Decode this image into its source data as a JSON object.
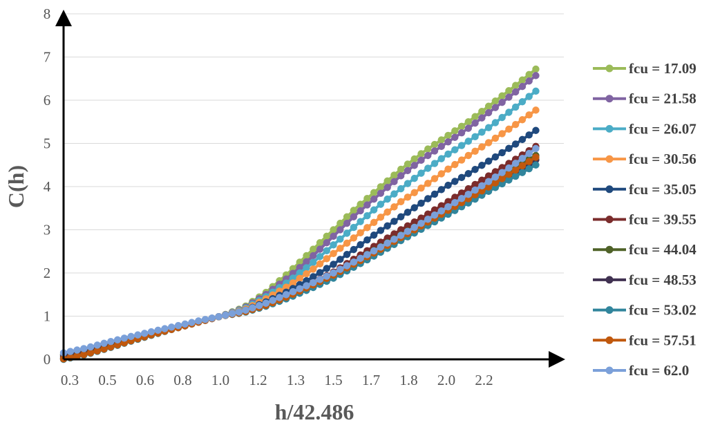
{
  "chart_data": {
    "type": "line",
    "title": "",
    "xlabel": "h/42.486",
    "ylabel": "C(h)",
    "xlim": [
      0.3,
      2.5
    ],
    "ylim": [
      0,
      8
    ],
    "x_tick_labels": [
      "0.3",
      "0.5",
      "0.6",
      "0.8",
      "1.0",
      "1.2",
      "1.3",
      "1.5",
      "1.7",
      "1.8",
      "2.0",
      "2.2"
    ],
    "y_ticks": [
      0,
      1,
      2,
      3,
      4,
      5,
      6,
      7,
      8
    ],
    "grid": "horizontal",
    "legend_position": "right",
    "marker": "circle",
    "x": [
      0.3,
      0.4,
      0.5,
      0.6,
      0.7,
      0.8,
      0.9,
      1.0,
      1.1,
      1.2,
      1.3,
      1.4,
      1.5,
      1.6,
      1.7,
      1.8,
      1.9,
      2.0,
      2.1,
      2.2,
      2.3,
      2.4
    ],
    "series": [
      {
        "name": "fcu = 17.09",
        "color": "#9bbb59",
        "values": [
          0.12,
          0.22,
          0.36,
          0.5,
          0.64,
          0.76,
          0.88,
          1.0,
          1.2,
          1.55,
          2.0,
          2.5,
          3.0,
          3.5,
          3.95,
          4.4,
          4.8,
          5.15,
          5.5,
          5.9,
          6.3,
          6.72
        ]
      },
      {
        "name": "fcu = 21.58",
        "color": "#8064a2",
        "values": [
          0.11,
          0.21,
          0.35,
          0.49,
          0.63,
          0.75,
          0.88,
          1.0,
          1.18,
          1.5,
          1.9,
          2.35,
          2.85,
          3.35,
          3.8,
          4.25,
          4.65,
          5.0,
          5.35,
          5.75,
          6.15,
          6.57
        ]
      },
      {
        "name": "fcu = 26.07",
        "color": "#4bacc6",
        "values": [
          0.1,
          0.2,
          0.34,
          0.48,
          0.62,
          0.75,
          0.87,
          1.0,
          1.16,
          1.45,
          1.8,
          2.2,
          2.65,
          3.1,
          3.55,
          3.95,
          4.35,
          4.72,
          5.05,
          5.4,
          5.8,
          6.21
        ]
      },
      {
        "name": "fcu = 30.56",
        "color": "#f79646",
        "values": [
          0.09,
          0.19,
          0.33,
          0.47,
          0.61,
          0.74,
          0.87,
          1.0,
          1.14,
          1.4,
          1.7,
          2.05,
          2.45,
          2.85,
          3.25,
          3.65,
          4.0,
          4.37,
          4.72,
          5.05,
          5.4,
          5.77
        ]
      },
      {
        "name": "fcu = 35.05",
        "color": "#1f497d",
        "values": [
          0.07,
          0.17,
          0.31,
          0.46,
          0.6,
          0.74,
          0.87,
          1.0,
          1.12,
          1.33,
          1.58,
          1.88,
          2.2,
          2.58,
          2.95,
          3.3,
          3.65,
          4.0,
          4.3,
          4.62,
          4.95,
          5.3
        ]
      },
      {
        "name": "fcu = 39.55",
        "color": "#7b2c2c",
        "values": [
          0.04,
          0.15,
          0.3,
          0.45,
          0.6,
          0.73,
          0.87,
          1.0,
          1.1,
          1.28,
          1.5,
          1.75,
          2.02,
          2.35,
          2.68,
          3.0,
          3.3,
          3.62,
          3.95,
          4.28,
          4.6,
          4.93
        ]
      },
      {
        "name": "fcu = 44.04",
        "color": "#4f6228",
        "values": [
          0.02,
          0.13,
          0.28,
          0.44,
          0.59,
          0.73,
          0.87,
          1.0,
          1.1,
          1.27,
          1.48,
          1.72,
          1.98,
          2.28,
          2.58,
          2.88,
          3.18,
          3.48,
          3.8,
          4.12,
          4.42,
          4.72
        ]
      },
      {
        "name": "fcu = 48.53",
        "color": "#403151",
        "values": [
          0.01,
          0.12,
          0.27,
          0.43,
          0.58,
          0.72,
          0.86,
          1.0,
          1.09,
          1.25,
          1.45,
          1.68,
          1.93,
          2.22,
          2.52,
          2.82,
          3.12,
          3.42,
          3.72,
          4.02,
          4.32,
          4.62
        ]
      },
      {
        "name": "fcu = 53.02",
        "color": "#31859c",
        "values": [
          0.0,
          0.11,
          0.26,
          0.42,
          0.57,
          0.72,
          0.86,
          1.0,
          1.08,
          1.23,
          1.42,
          1.64,
          1.88,
          2.16,
          2.45,
          2.75,
          3.04,
          3.33,
          3.62,
          3.92,
          4.21,
          4.5
        ]
      },
      {
        "name": "fcu = 57.51",
        "color": "#c0580d",
        "values": [
          0.01,
          0.12,
          0.27,
          0.43,
          0.58,
          0.72,
          0.86,
          1.0,
          1.09,
          1.25,
          1.46,
          1.7,
          1.95,
          2.23,
          2.52,
          2.82,
          3.12,
          3.42,
          3.72,
          4.02,
          4.35,
          4.68
        ]
      },
      {
        "name": "fcu = 62.0",
        "color": "#7ba0d9",
        "values": [
          0.15,
          0.26,
          0.4,
          0.53,
          0.65,
          0.77,
          0.89,
          1.0,
          1.12,
          1.3,
          1.52,
          1.75,
          2.0,
          2.28,
          2.57,
          2.87,
          3.18,
          3.5,
          3.82,
          4.15,
          4.5,
          4.88
        ]
      }
    ]
  }
}
